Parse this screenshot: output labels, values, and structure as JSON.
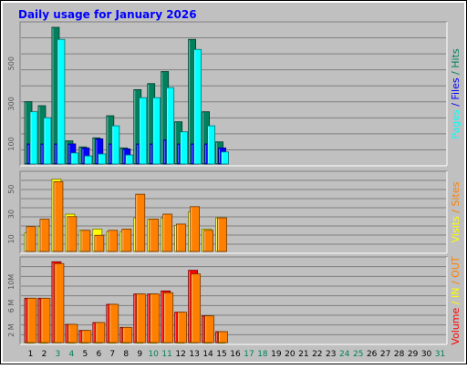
{
  "title": "Daily usage for January 2026",
  "colors": {
    "frame_bg": "#c0c0c0",
    "panel_bg": "#c0c0c0",
    "grid": "#808080",
    "title": "#0000ff",
    "hits": "#00805c",
    "files": "#0000ff",
    "pages": "#00ffff",
    "visits": "#ffff00",
    "sites": "#ff8000",
    "kbytes": "#ff0000",
    "in": "#ffff00",
    "out": "#ff8000",
    "weekend_day": "#00805c"
  },
  "chart_data": {
    "type": "bar",
    "title": "Daily usage for January 2026",
    "days": [
      "1",
      "2",
      "3",
      "4",
      "5",
      "6",
      "7",
      "8",
      "9",
      "10",
      "11",
      "12",
      "13",
      "14",
      "15",
      "16",
      "17",
      "18",
      "19",
      "20",
      "21",
      "22",
      "23",
      "24",
      "25",
      "26",
      "27",
      "28",
      "29",
      "30",
      "31"
    ],
    "weekend_days": [
      "3",
      "4",
      "10",
      "11",
      "17",
      "18",
      "24",
      "25",
      "31"
    ],
    "panels": [
      {
        "id": "hits",
        "legend": [
          "Hits",
          "/",
          "Files",
          "/",
          "Pages"
        ],
        "legend_separators": [
          "/",
          "/"
        ],
        "ticks": [
          "100",
          "300",
          "500"
        ],
        "tick_values": [
          100,
          300,
          500
        ],
        "ymax": 680,
        "series": [
          {
            "name": "Hits",
            "values": [
              310,
              290,
              680,
              115,
              85,
              130,
              240,
              80,
              370,
              400,
              460,
              210,
              620,
              260,
              110,
              0,
              0,
              0,
              0,
              0,
              0,
              0,
              0,
              0,
              0,
              0,
              0,
              0,
              0,
              0,
              0
            ]
          },
          {
            "name": "Files",
            "values": [
              100,
              100,
              100,
              100,
              80,
              125,
              100,
              75,
              100,
              100,
              120,
              100,
              100,
              100,
              80,
              0,
              0,
              0,
              0,
              0,
              0,
              0,
              0,
              0,
              0,
              0,
              0,
              0,
              0,
              0,
              0
            ]
          },
          {
            "name": "Pages",
            "values": [
              260,
              230,
              620,
              55,
              40,
              50,
              190,
              45,
              330,
              330,
              380,
              160,
              570,
              190,
              60,
              0,
              0,
              0,
              0,
              0,
              0,
              0,
              0,
              0,
              0,
              0,
              0,
              0,
              0,
              0,
              0
            ]
          }
        ]
      },
      {
        "id": "visits",
        "legend": [
          "Sites",
          "/",
          "Visits"
        ],
        "legend_separators": [
          "/"
        ],
        "ticks": [
          "10",
          "30",
          "50"
        ],
        "tick_values": [
          10,
          30,
          50
        ],
        "ymax": 60,
        "series": [
          {
            "name": "Visits",
            "values": [
              15,
              20,
              58,
              30,
              17,
              18,
              16,
              16,
              27,
              26,
              27,
              21,
              32,
              18,
              27,
              0,
              0,
              0,
              0,
              0,
              0,
              0,
              0,
              0,
              0,
              0,
              0,
              0,
              0,
              0,
              0
            ]
          },
          {
            "name": "Sites",
            "values": [
              20,
              26,
              56,
              28,
              17,
              13,
              17,
              18,
              46,
              26,
              30,
              22,
              36,
              17,
              27,
              0,
              0,
              0,
              0,
              0,
              0,
              0,
              0,
              0,
              0,
              0,
              0,
              0,
              0,
              0,
              0
            ]
          }
        ]
      },
      {
        "id": "volume",
        "legend": [
          "Volume",
          "/",
          "IN",
          "/",
          "OUT"
        ],
        "legend_separators": [
          "/",
          "/"
        ],
        "ticks": [
          "2 M",
          "6 M",
          "10M"
        ],
        "tick_values": [
          2,
          6,
          10
        ],
        "ymax": 13.2,
        "series": [
          {
            "name": "Volume",
            "values": [
              7.3,
              7.3,
              13.3,
              3.0,
              2.0,
              3.3,
              6.3,
              2.5,
              8.0,
              8.0,
              8.5,
              5.0,
              11.9,
              4.4,
              1.8,
              0,
              0,
              0,
              0,
              0,
              0,
              0,
              0,
              0,
              0,
              0,
              0,
              0,
              0,
              0,
              0
            ]
          },
          {
            "name": "IN",
            "values": [
              0.05,
              0.05,
              0.1,
              0.05,
              0.05,
              0.05,
              0.05,
              0.05,
              0.05,
              0.05,
              0.1,
              0.05,
              0.1,
              0.05,
              0.05,
              0,
              0,
              0,
              0,
              0,
              0,
              0,
              0,
              0,
              0,
              0,
              0,
              0,
              0,
              0,
              0
            ]
          },
          {
            "name": "OUT",
            "values": [
              7.3,
              7.3,
              13.0,
              3.0,
              2.0,
              3.3,
              6.3,
              2.5,
              8.0,
              8.0,
              8.2,
              5.0,
              11.3,
              4.4,
              1.8,
              0,
              0,
              0,
              0,
              0,
              0,
              0,
              0,
              0,
              0,
              0,
              0,
              0,
              0,
              0,
              0
            ]
          }
        ]
      }
    ]
  }
}
